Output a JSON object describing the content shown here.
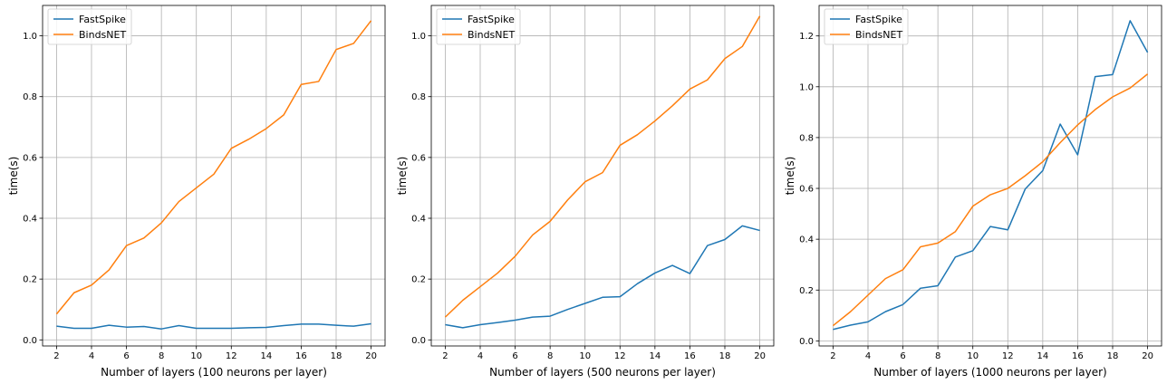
{
  "chart_data": [
    {
      "type": "line",
      "xlabel": "Number of layers (100 neurons per layer)",
      "ylabel": "time(s)",
      "xlim": [
        1.2,
        20.8
      ],
      "ylim": [
        -0.02,
        1.1
      ],
      "xticks": [
        2,
        4,
        6,
        8,
        10,
        12,
        14,
        16,
        18,
        20
      ],
      "yticks": [
        0.0,
        0.2,
        0.4,
        0.6,
        0.8,
        1.0
      ],
      "grid": true,
      "legend": "top-left",
      "x": [
        2,
        3,
        4,
        5,
        6,
        7,
        8,
        9,
        10,
        11,
        12,
        13,
        14,
        15,
        16,
        17,
        18,
        19,
        20
      ],
      "series": [
        {
          "name": "FastSpike",
          "color": "#1f77b4",
          "values": [
            0.045,
            0.038,
            0.038,
            0.048,
            0.042,
            0.044,
            0.036,
            0.047,
            0.038,
            0.038,
            0.038,
            0.04,
            0.041,
            0.047,
            0.052,
            0.052,
            0.048,
            0.045,
            0.053
          ]
        },
        {
          "name": "BindsNET",
          "color": "#ff7f0e",
          "values": [
            0.085,
            0.155,
            0.18,
            0.23,
            0.31,
            0.335,
            0.385,
            0.455,
            0.5,
            0.545,
            0.63,
            0.66,
            0.695,
            0.74,
            0.84,
            0.85,
            0.955,
            0.975,
            1.05
          ]
        }
      ]
    },
    {
      "type": "line",
      "xlabel": "Number of layers (500 neurons per layer)",
      "ylabel": "time(s)",
      "xlim": [
        1.2,
        20.8
      ],
      "ylim": [
        -0.02,
        1.1
      ],
      "xticks": [
        2,
        4,
        6,
        8,
        10,
        12,
        14,
        16,
        18,
        20
      ],
      "yticks": [
        0.0,
        0.2,
        0.4,
        0.6,
        0.8,
        1.0
      ],
      "grid": true,
      "legend": "top-left",
      "x": [
        2,
        3,
        4,
        5,
        6,
        7,
        8,
        9,
        10,
        11,
        12,
        13,
        14,
        15,
        16,
        17,
        18,
        19,
        20
      ],
      "series": [
        {
          "name": "FastSpike",
          "color": "#1f77b4",
          "values": [
            0.05,
            0.04,
            0.05,
            0.057,
            0.065,
            0.075,
            0.078,
            0.1,
            0.12,
            0.14,
            0.142,
            0.185,
            0.22,
            0.245,
            0.218,
            0.31,
            0.33,
            0.375,
            0.36
          ]
        },
        {
          "name": "BindsNET",
          "color": "#ff7f0e",
          "values": [
            0.075,
            0.13,
            0.175,
            0.22,
            0.275,
            0.345,
            0.39,
            0.46,
            0.52,
            0.55,
            0.64,
            0.675,
            0.72,
            0.77,
            0.825,
            0.855,
            0.925,
            0.965,
            1.065
          ]
        }
      ]
    },
    {
      "type": "line",
      "xlabel": "Number of layers (1000 neurons per layer)",
      "ylabel": "time(s)",
      "xlim": [
        1.2,
        20.8
      ],
      "ylim": [
        -0.02,
        1.32
      ],
      "xticks": [
        2,
        4,
        6,
        8,
        10,
        12,
        14,
        16,
        18,
        20
      ],
      "yticks": [
        0.0,
        0.2,
        0.4,
        0.6,
        0.8,
        1.0,
        1.2
      ],
      "grid": true,
      "legend": "top-left",
      "x": [
        2,
        3,
        4,
        5,
        6,
        7,
        8,
        9,
        10,
        11,
        12,
        13,
        14,
        15,
        16,
        17,
        18,
        19,
        20
      ],
      "series": [
        {
          "name": "FastSpike",
          "color": "#1f77b4",
          "values": [
            0.045,
            0.062,
            0.075,
            0.115,
            0.143,
            0.207,
            0.217,
            0.33,
            0.355,
            0.45,
            0.437,
            0.598,
            0.67,
            0.853,
            0.732,
            1.04,
            1.048,
            1.26,
            1.135
          ]
        },
        {
          "name": "BindsNET",
          "color": "#ff7f0e",
          "values": [
            0.06,
            0.115,
            0.18,
            0.245,
            0.28,
            0.37,
            0.385,
            0.43,
            0.53,
            0.575,
            0.6,
            0.65,
            0.705,
            0.78,
            0.85,
            0.91,
            0.96,
            0.995,
            1.05
          ]
        }
      ]
    }
  ]
}
